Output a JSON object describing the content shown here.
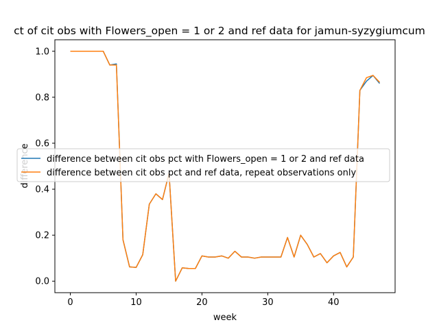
{
  "chart_data": {
    "type": "line",
    "title": "ct of cit obs with Flowers_open = 1 or 2 and ref data for jamun-syzygiumcum",
    "xlabel": "week",
    "ylabel": "difference",
    "xlim": [
      -2.35,
      49.35
    ],
    "ylim": [
      -0.05,
      1.05
    ],
    "xticks": [
      0,
      10,
      20,
      30,
      40
    ],
    "yticks": [
      0.0,
      0.2,
      0.4,
      0.6,
      0.8,
      1.0
    ],
    "ytick_labels": [
      "0.0",
      "0.2",
      "0.4",
      "0.6",
      "0.8",
      "1.0"
    ],
    "legend_position": "center-left",
    "x": [
      0,
      1,
      2,
      3,
      4,
      5,
      6,
      7,
      8,
      9,
      10,
      11,
      12,
      13,
      14,
      15,
      16,
      17,
      18,
      19,
      20,
      21,
      22,
      23,
      24,
      25,
      26,
      27,
      28,
      29,
      30,
      31,
      32,
      33,
      34,
      35,
      36,
      37,
      38,
      39,
      40,
      41,
      42,
      43,
      44,
      45,
      46,
      47
    ],
    "series": [
      {
        "name": "difference between cit obs pct with Flowers_open = 1 or 2 and ref data",
        "color": "#1f77b4",
        "values": [
          1.0,
          1.0,
          1.0,
          1.0,
          1.0,
          1.0,
          0.94,
          0.945,
          0.18,
          0.062,
          0.06,
          0.115,
          0.335,
          0.38,
          0.355,
          0.47,
          0.0,
          0.058,
          0.055,
          0.055,
          0.11,
          0.105,
          0.105,
          0.11,
          0.1,
          0.13,
          0.105,
          0.105,
          0.1,
          0.105,
          0.105,
          0.105,
          0.105,
          0.19,
          0.105,
          0.2,
          0.16,
          0.105,
          0.12,
          0.08,
          0.11,
          0.125,
          0.062,
          0.105,
          0.83,
          0.87,
          0.895,
          0.86
        ]
      },
      {
        "name": "difference between cit obs pct and ref data, repeat observations only",
        "color": "#ff7f0e",
        "values": [
          1.0,
          1.0,
          1.0,
          1.0,
          1.0,
          1.0,
          0.94,
          0.94,
          0.18,
          0.062,
          0.06,
          0.115,
          0.335,
          0.38,
          0.355,
          0.47,
          0.0,
          0.058,
          0.055,
          0.055,
          0.11,
          0.105,
          0.105,
          0.11,
          0.1,
          0.13,
          0.105,
          0.105,
          0.1,
          0.105,
          0.105,
          0.105,
          0.105,
          0.19,
          0.105,
          0.2,
          0.16,
          0.105,
          0.12,
          0.08,
          0.11,
          0.125,
          0.062,
          0.105,
          0.83,
          0.885,
          0.895,
          0.865
        ]
      }
    ]
  }
}
